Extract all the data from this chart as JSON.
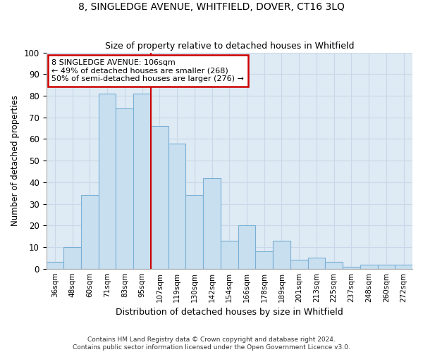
{
  "title": "8, SINGLEDGE AVENUE, WHITFIELD, DOVER, CT16 3LQ",
  "subtitle": "Size of property relative to detached houses in Whitfield",
  "xlabel": "Distribution of detached houses by size in Whitfield",
  "ylabel": "Number of detached properties",
  "categories": [
    "36sqm",
    "48sqm",
    "60sqm",
    "71sqm",
    "83sqm",
    "95sqm",
    "107sqm",
    "119sqm",
    "130sqm",
    "142sqm",
    "154sqm",
    "166sqm",
    "178sqm",
    "189sqm",
    "201sqm",
    "213sqm",
    "225sqm",
    "237sqm",
    "248sqm",
    "260sqm",
    "272sqm"
  ],
  "values": [
    3,
    10,
    34,
    81,
    74,
    81,
    66,
    58,
    34,
    42,
    13,
    20,
    8,
    13,
    4,
    5,
    3,
    1,
    2,
    2,
    2
  ],
  "bar_color": "#c8dff0",
  "bar_edge_color": "#7ab0d4",
  "vline_x": 5.5,
  "vline_color": "#cc0000",
  "annotation_text": "8 SINGLEDGE AVENUE: 106sqm\n← 49% of detached houses are smaller (268)\n50% of semi-detached houses are larger (276) →",
  "annotation_box_color": "#ffffff",
  "annotation_box_edge_color": "#cc0000",
  "ylim": [
    0,
    100
  ],
  "yticks": [
    0,
    10,
    20,
    30,
    40,
    50,
    60,
    70,
    80,
    90,
    100
  ],
  "grid_color": "#c8d8e8",
  "background_color": "#deeaf4",
  "footer1": "Contains HM Land Registry data © Crown copyright and database right 2024.",
  "footer2": "Contains public sector information licensed under the Open Government Licence v3.0."
}
